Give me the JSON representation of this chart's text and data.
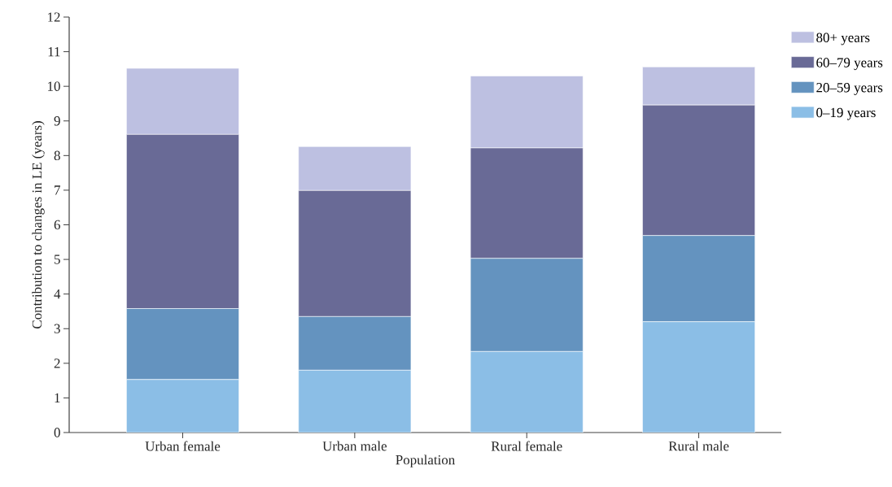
{
  "chart_data": {
    "type": "bar",
    "stacked": true,
    "xlabel": "Population",
    "ylabel": "Contribution to changes in LE (years)",
    "categories": [
      "Urban female",
      "Urban male",
      "Rural female",
      "Rural male"
    ],
    "series": [
      {
        "name": "0–19 years",
        "color": "#8bbee6",
        "values": [
          1.53,
          1.8,
          2.34,
          3.2
        ]
      },
      {
        "name": "20–59 years",
        "color": "#6493bf",
        "values": [
          2.05,
          1.55,
          2.69,
          2.49
        ]
      },
      {
        "name": "60–79 years",
        "color": "#696a96",
        "values": [
          5.03,
          3.64,
          3.19,
          3.77
        ]
      },
      {
        "name": "80+ years",
        "color": "#bdc0e1",
        "values": [
          1.91,
          1.27,
          2.08,
          1.1
        ]
      }
    ],
    "ylim": [
      0,
      12
    ],
    "yticks": [
      0,
      1,
      2,
      3,
      4,
      5,
      6,
      7,
      8,
      9,
      10,
      11,
      12
    ],
    "grid": false,
    "legend": "right"
  }
}
